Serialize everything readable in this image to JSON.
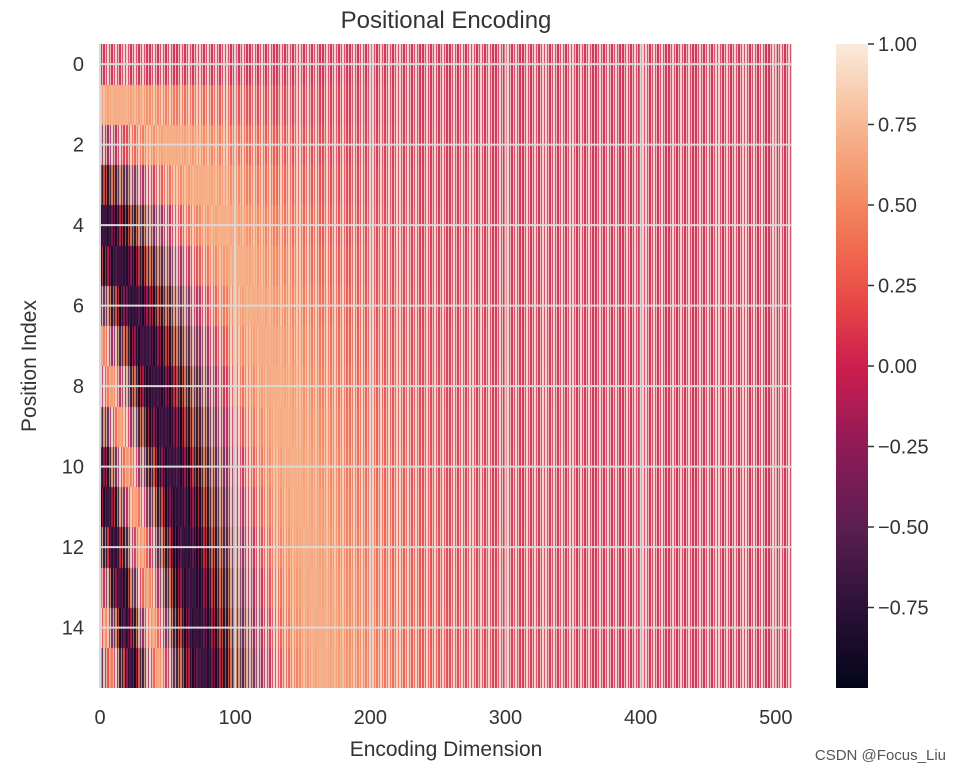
{
  "chart_data": {
    "type": "heatmap",
    "title": "Positional Encoding",
    "xlabel": "Encoding Dimension",
    "ylabel": "Position Index",
    "n_positions": 16,
    "n_dims": 512,
    "xlim": [
      0,
      512
    ],
    "ylim": [
      0,
      16
    ],
    "x_ticks": [
      0,
      100,
      200,
      300,
      400,
      500
    ],
    "x_tick_labels": [
      "0",
      "100",
      "200",
      "300",
      "400",
      "500"
    ],
    "y_ticks": [
      0,
      2,
      4,
      6,
      8,
      10,
      12,
      14
    ],
    "y_tick_labels": [
      "0",
      "2",
      "4",
      "6",
      "8",
      "10",
      "12",
      "14"
    ],
    "value_formula": "even dim: sin(pos / 10000^(dim/512)); odd dim: cos(pos / 10000^((dim-1)/512))",
    "colormap": "rocket",
    "colorbar": {
      "min": -1.0,
      "max": 1.0,
      "ticks": [
        1.0,
        0.75,
        0.5,
        0.25,
        0.0,
        -0.25,
        -0.5,
        -0.75
      ],
      "tick_labels": [
        "1.00",
        "0.75",
        "0.50",
        "0.25",
        "0.00",
        "−0.25",
        "−0.50",
        "−0.75"
      ],
      "placement": "right"
    },
    "grid": true,
    "grid_color": "#d9d9d9"
  },
  "watermark": "CSDN @Focus_Liu"
}
